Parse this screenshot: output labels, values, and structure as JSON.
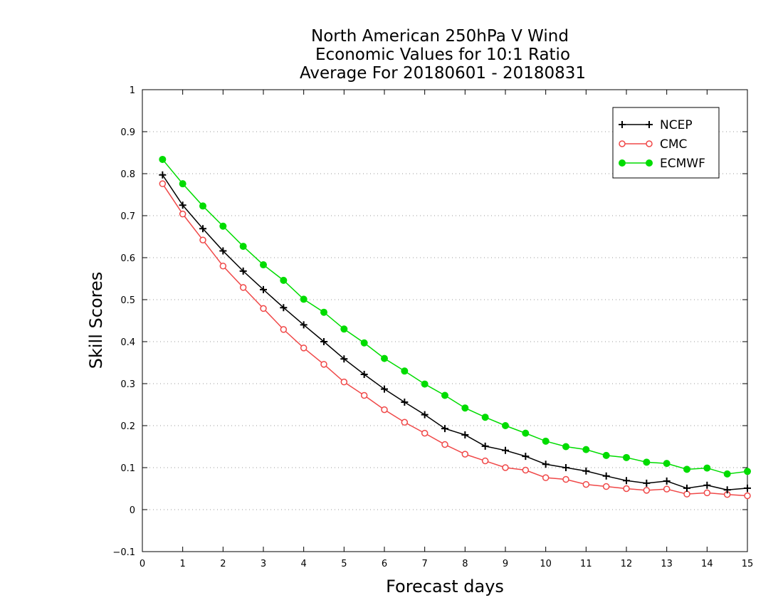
{
  "chart_data": {
    "type": "line",
    "title": [
      "North American 250hPa V Wind",
      "Economic Values for 10:1 Ratio",
      "Average For 20180601 - 20180831"
    ],
    "xlabel": "Forecast days",
    "ylabel": "Skill Scores",
    "xlim": [
      0,
      15
    ],
    "ylim": [
      -0.1,
      1
    ],
    "xticks": [
      0,
      1,
      2,
      3,
      4,
      5,
      6,
      7,
      8,
      9,
      10,
      11,
      12,
      13,
      14,
      15
    ],
    "xtick_labels": [
      "0",
      "1",
      "2",
      "3",
      "4",
      "5",
      "6",
      "7",
      "8",
      "9",
      "10",
      "11",
      "12",
      "13",
      "14",
      "15"
    ],
    "yticks": [
      -0.1,
      0,
      0.1,
      0.2,
      0.3,
      0.4,
      0.5,
      0.6,
      0.7,
      0.8,
      0.9,
      1
    ],
    "ytick_labels": [
      "−0.1",
      "0",
      "0.1",
      "0.2",
      "0.3",
      "0.4",
      "0.5",
      "0.6",
      "0.7",
      "0.8",
      "0.9",
      "1"
    ],
    "grid": "horizontal dotted",
    "legend_position": "top-right",
    "x": [
      0.5,
      1,
      1.5,
      2,
      2.5,
      3,
      3.5,
      4,
      4.5,
      5,
      5.5,
      6,
      6.5,
      7,
      7.5,
      8,
      8.5,
      9,
      9.5,
      10,
      10.5,
      11,
      11.5,
      12,
      12.5,
      13,
      13.5,
      14,
      14.5,
      15
    ],
    "series": [
      {
        "name": "NCEP",
        "color": "#000000",
        "marker": "plus",
        "values": [
          0.797,
          0.725,
          0.669,
          0.616,
          0.568,
          0.524,
          0.481,
          0.44,
          0.4,
          0.359,
          0.322,
          0.287,
          0.256,
          0.226,
          0.193,
          0.178,
          0.151,
          0.141,
          0.127,
          0.108,
          0.1,
          0.092,
          0.08,
          0.069,
          0.063,
          0.068,
          0.051,
          0.058,
          0.047,
          0.051
        ]
      },
      {
        "name": "CMC",
        "color": "#f04848",
        "marker": "open-circle",
        "values": [
          0.776,
          0.704,
          0.642,
          0.58,
          0.529,
          0.479,
          0.429,
          0.385,
          0.346,
          0.304,
          0.272,
          0.238,
          0.208,
          0.182,
          0.155,
          0.132,
          0.116,
          0.1,
          0.094,
          0.076,
          0.072,
          0.06,
          0.055,
          0.05,
          0.046,
          0.049,
          0.037,
          0.04,
          0.036,
          0.033
        ]
      },
      {
        "name": "ECMWF",
        "color": "#00dc00",
        "marker": "filled-circle",
        "values": [
          0.834,
          0.776,
          0.723,
          0.675,
          0.627,
          0.583,
          0.546,
          0.501,
          0.47,
          0.43,
          0.397,
          0.36,
          0.33,
          0.299,
          0.272,
          0.242,
          0.22,
          0.2,
          0.182,
          0.163,
          0.15,
          0.143,
          0.129,
          0.124,
          0.113,
          0.11,
          0.096,
          0.099,
          0.085,
          0.091
        ]
      }
    ]
  }
}
